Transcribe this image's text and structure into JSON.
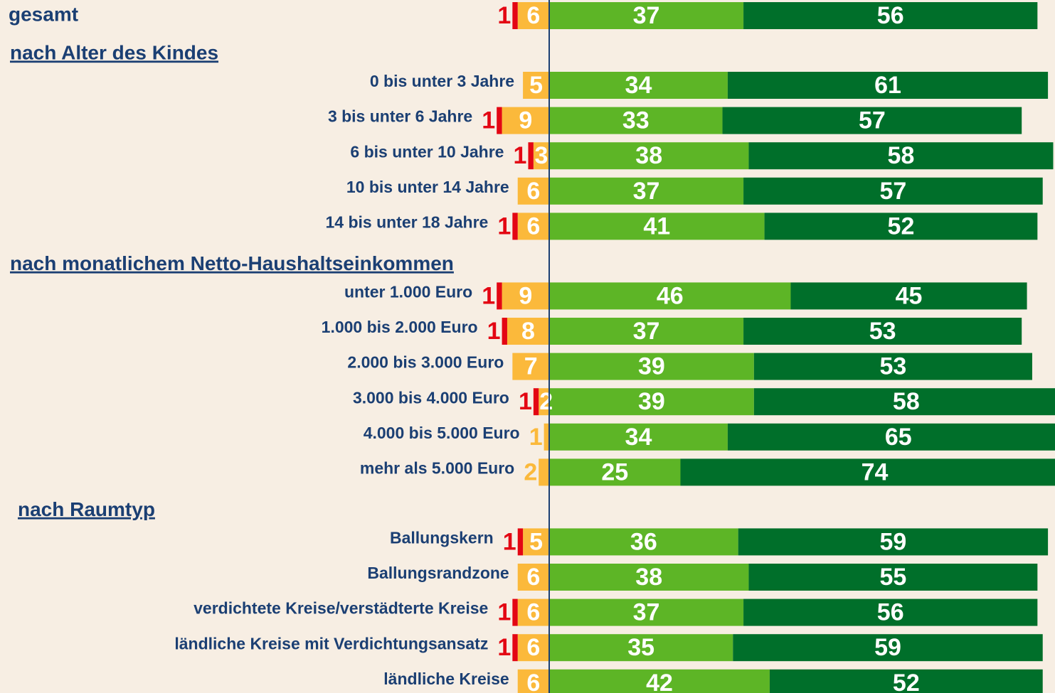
{
  "chart_data": [
    {
      "type": "bar",
      "categories": [
        "gesamt"
      ],
      "series": [
        {
          "color": "#e30613",
          "values": [
            1
          ]
        },
        {
          "color": "#fbb93b",
          "values": [
            6
          ]
        },
        {
          "color": "#5db526",
          "values": [
            37
          ]
        },
        {
          "color": "#006f2a",
          "values": [
            56
          ]
        }
      ]
    },
    {
      "type": "bar",
      "title": "nach Alter des Kindes",
      "categories": [
        "0 bis unter 3 Jahre",
        "3 bis unter 6 Jahre",
        "6 bis unter 10 Jahre",
        "10 bis unter 14 Jahre",
        "14 bis unter 18 Jahre"
      ],
      "series": [
        {
          "color": "#e30613",
          "values": [
            null,
            1,
            1,
            null,
            1
          ]
        },
        {
          "color": "#fbb93b",
          "values": [
            5,
            9,
            3,
            6,
            6
          ]
        },
        {
          "color": "#5db526",
          "values": [
            34,
            33,
            38,
            37,
            41
          ]
        },
        {
          "color": "#006f2a",
          "values": [
            61,
            57,
            58,
            57,
            52
          ]
        }
      ]
    },
    {
      "type": "bar",
      "title": "nach monatlichem Netto-Haushaltseinkommen",
      "categories": [
        "unter 1.000 Euro",
        "1.000 bis 2.000 Euro",
        "2.000 bis 3.000 Euro",
        "3.000 bis 4.000 Euro",
        "4.000 bis 5.000 Euro",
        "mehr als 5.000 Euro"
      ],
      "series": [
        {
          "color": "#e30613",
          "values": [
            1,
            1,
            null,
            1,
            null,
            null
          ]
        },
        {
          "color": "#fbb93b",
          "values": [
            9,
            8,
            7,
            2,
            1,
            2
          ]
        },
        {
          "color": "#5db526",
          "values": [
            46,
            37,
            39,
            39,
            34,
            25
          ]
        },
        {
          "color": "#006f2a",
          "values": [
            45,
            53,
            53,
            58,
            65,
            74
          ]
        }
      ]
    },
    {
      "type": "bar",
      "title": "nach Raumtyp",
      "categories": [
        "Ballungskern",
        "Ballungsrandzone",
        "verdichtete Kreise/verstädterte Kreise",
        "ländliche Kreise mit Verdichtungsansatz",
        "ländliche Kreise"
      ],
      "series": [
        {
          "color": "#e30613",
          "values": [
            1,
            null,
            1,
            1,
            null
          ]
        },
        {
          "color": "#fbb93b",
          "values": [
            5,
            6,
            6,
            6,
            6
          ]
        },
        {
          "color": "#5db526",
          "values": [
            36,
            38,
            37,
            35,
            42
          ]
        },
        {
          "color": "#006f2a",
          "values": [
            59,
            55,
            56,
            59,
            52
          ]
        }
      ]
    }
  ]
}
